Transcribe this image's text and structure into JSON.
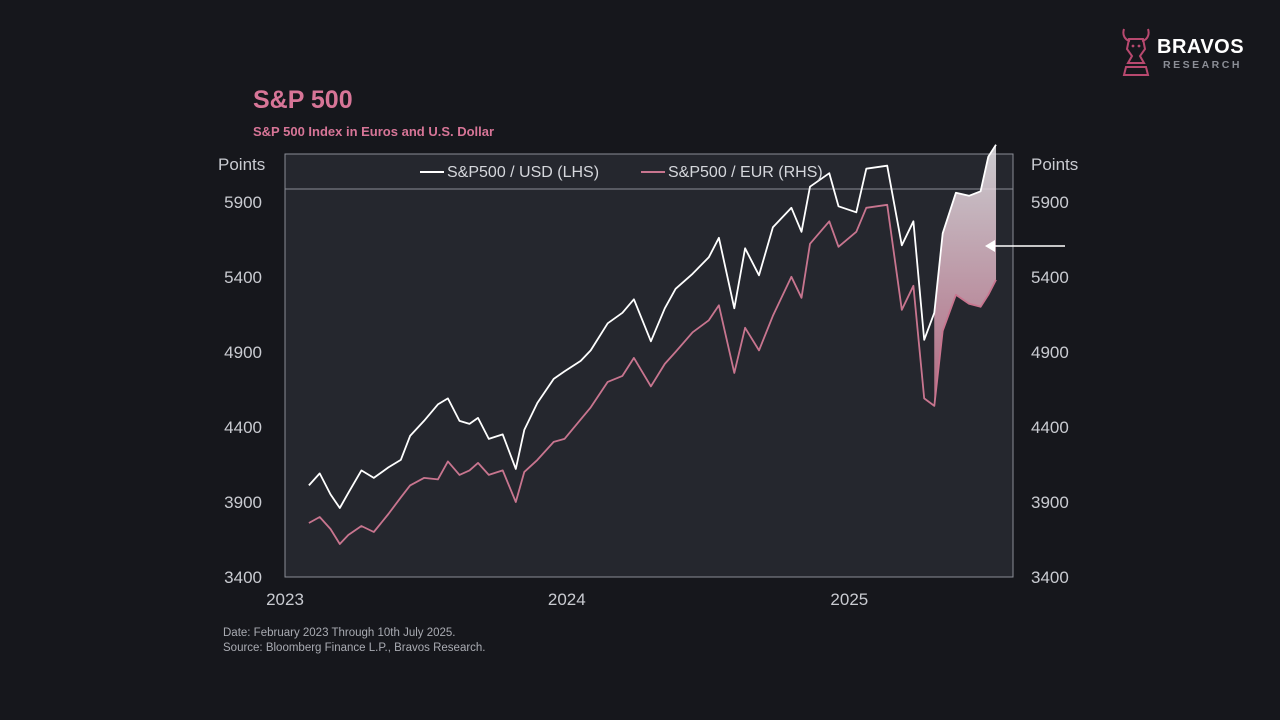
{
  "header": {
    "title": "S&P 500",
    "subtitle": "S&P 500 Index in Euros and U.S. Dollar"
  },
  "brand": {
    "name": "BRAVOS",
    "tagline": "RESEARCH",
    "logo_icon": "bull-chess-knight-icon"
  },
  "footer": {
    "date_note": "Date: February 2023 Through 10th July 2025.",
    "source_note": "Source: Bloomberg Finance L.P., Bravos Research."
  },
  "colors": {
    "background": "#16171c",
    "plot_background": "#25272e",
    "usd_line": "#ffffff",
    "eur_line": "#c8758f",
    "accent": "#d77597",
    "arrow": "#ffffff"
  },
  "chart_data": {
    "type": "line",
    "title": "S&P 500",
    "subtitle": "S&P 500 Index in Euros and U.S. Dollar",
    "y_unit_label_left": "Points",
    "y_unit_label_right": "Points",
    "x_tick_labels": [
      "2023",
      "2024",
      "2025"
    ],
    "x_ticks": [
      "2023-01-01",
      "2024-01-01",
      "2025-01-01"
    ],
    "x_range": [
      "2023-01-01",
      "2025-08-01"
    ],
    "y_ticks_left": [
      3400,
      3900,
      4400,
      4900,
      5400,
      5900
    ],
    "y_ticks_right": [
      3400,
      3900,
      4400,
      4900,
      5400,
      5900
    ],
    "ylim": [
      3400,
      5985
    ],
    "grid": false,
    "legend_position": "top-center",
    "annotations": [
      {
        "type": "shaded-gap",
        "from": "2025-04-21",
        "to": "2025-07-10",
        "between": [
          "S&P500 / USD (LHS)",
          "S&P500 / EUR (RHS)"
        ]
      },
      {
        "type": "arrow",
        "points_at": "2025-07-10",
        "label": ""
      }
    ],
    "series": [
      {
        "name": "S&P500 / USD (LHS)",
        "axis": "left",
        "points": [
          [
            "2023-02-01",
            4010
          ],
          [
            "2023-02-15",
            4090
          ],
          [
            "2023-03-01",
            3950
          ],
          [
            "2023-03-13",
            3860
          ],
          [
            "2023-03-24",
            3960
          ],
          [
            "2023-04-10",
            4110
          ],
          [
            "2023-04-26",
            4060
          ],
          [
            "2023-05-15",
            4130
          ],
          [
            "2023-05-31",
            4180
          ],
          [
            "2023-06-12",
            4340
          ],
          [
            "2023-06-30",
            4440
          ],
          [
            "2023-07-18",
            4550
          ],
          [
            "2023-07-31",
            4590
          ],
          [
            "2023-08-15",
            4440
          ],
          [
            "2023-08-28",
            4420
          ],
          [
            "2023-09-08",
            4460
          ],
          [
            "2023-09-22",
            4320
          ],
          [
            "2023-10-10",
            4350
          ],
          [
            "2023-10-27",
            4120
          ],
          [
            "2023-11-07",
            4380
          ],
          [
            "2023-11-24",
            4560
          ],
          [
            "2023-12-15",
            4720
          ],
          [
            "2023-12-29",
            4770
          ],
          [
            "2024-01-19",
            4840
          ],
          [
            "2024-02-01",
            4910
          ],
          [
            "2024-02-23",
            5090
          ],
          [
            "2024-03-13",
            5160
          ],
          [
            "2024-03-28",
            5250
          ],
          [
            "2024-04-19",
            4970
          ],
          [
            "2024-05-07",
            5190
          ],
          [
            "2024-05-21",
            5320
          ],
          [
            "2024-06-12",
            5420
          ],
          [
            "2024-07-03",
            5530
          ],
          [
            "2024-07-16",
            5660
          ],
          [
            "2024-08-05",
            5190
          ],
          [
            "2024-08-19",
            5590
          ],
          [
            "2024-09-06",
            5410
          ],
          [
            "2024-09-24",
            5730
          ],
          [
            "2024-10-18",
            5860
          ],
          [
            "2024-10-31",
            5700
          ],
          [
            "2024-11-11",
            6000
          ],
          [
            "2024-12-06",
            6090
          ],
          [
            "2024-12-18",
            5870
          ],
          [
            "2025-01-10",
            5830
          ],
          [
            "2025-01-23",
            6120
          ],
          [
            "2025-02-19",
            6140
          ],
          [
            "2025-03-10",
            5610
          ],
          [
            "2025-03-25",
            5770
          ],
          [
            "2025-04-08",
            4980
          ],
          [
            "2025-04-21",
            5160
          ],
          [
            "2025-05-02",
            5690
          ],
          [
            "2025-05-19",
            5960
          ],
          [
            "2025-06-05",
            5940
          ],
          [
            "2025-06-20",
            5970
          ],
          [
            "2025-06-30",
            6200
          ],
          [
            "2025-07-10",
            6280
          ]
        ]
      },
      {
        "name": "S&P500 / EUR (RHS)",
        "axis": "right",
        "points": [
          [
            "2023-02-01",
            3760
          ],
          [
            "2023-02-15",
            3800
          ],
          [
            "2023-03-01",
            3720
          ],
          [
            "2023-03-13",
            3620
          ],
          [
            "2023-03-24",
            3680
          ],
          [
            "2023-04-10",
            3740
          ],
          [
            "2023-04-26",
            3700
          ],
          [
            "2023-05-15",
            3820
          ],
          [
            "2023-05-31",
            3930
          ],
          [
            "2023-06-12",
            4010
          ],
          [
            "2023-06-30",
            4060
          ],
          [
            "2023-07-18",
            4050
          ],
          [
            "2023-07-31",
            4170
          ],
          [
            "2023-08-15",
            4080
          ],
          [
            "2023-08-28",
            4110
          ],
          [
            "2023-09-08",
            4160
          ],
          [
            "2023-09-22",
            4080
          ],
          [
            "2023-10-10",
            4110
          ],
          [
            "2023-10-27",
            3900
          ],
          [
            "2023-11-07",
            4100
          ],
          [
            "2023-11-24",
            4180
          ],
          [
            "2023-12-15",
            4300
          ],
          [
            "2023-12-29",
            4320
          ],
          [
            "2024-01-19",
            4450
          ],
          [
            "2024-02-01",
            4530
          ],
          [
            "2024-02-23",
            4700
          ],
          [
            "2024-03-13",
            4740
          ],
          [
            "2024-03-28",
            4860
          ],
          [
            "2024-04-19",
            4670
          ],
          [
            "2024-05-07",
            4820
          ],
          [
            "2024-05-21",
            4900
          ],
          [
            "2024-06-12",
            5030
          ],
          [
            "2024-07-03",
            5110
          ],
          [
            "2024-07-16",
            5210
          ],
          [
            "2024-08-05",
            4760
          ],
          [
            "2024-08-19",
            5060
          ],
          [
            "2024-09-06",
            4910
          ],
          [
            "2024-09-24",
            5140
          ],
          [
            "2024-10-18",
            5400
          ],
          [
            "2024-10-31",
            5260
          ],
          [
            "2024-11-11",
            5620
          ],
          [
            "2024-12-06",
            5770
          ],
          [
            "2024-12-18",
            5600
          ],
          [
            "2025-01-10",
            5700
          ],
          [
            "2025-01-23",
            5860
          ],
          [
            "2025-02-19",
            5880
          ],
          [
            "2025-03-10",
            5180
          ],
          [
            "2025-03-25",
            5340
          ],
          [
            "2025-04-08",
            4590
          ],
          [
            "2025-04-21",
            4540
          ],
          [
            "2025-05-02",
            5040
          ],
          [
            "2025-05-19",
            5280
          ],
          [
            "2025-06-05",
            5220
          ],
          [
            "2025-06-20",
            5200
          ],
          [
            "2025-06-30",
            5280
          ],
          [
            "2025-07-10",
            5380
          ]
        ]
      }
    ]
  }
}
